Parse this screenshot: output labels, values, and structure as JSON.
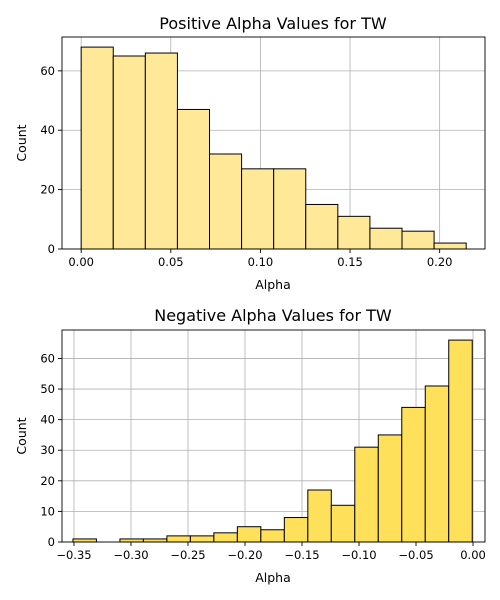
{
  "chart_data": [
    {
      "type": "bar",
      "title": "Positive Alpha Values for TW",
      "xlabel": "Alpha",
      "ylabel": "Count",
      "xlim": [
        -0.0107,
        0.2253
      ],
      "ylim": [
        0,
        71.4
      ],
      "xticks": [
        0.0,
        0.05,
        0.1,
        0.15,
        0.2
      ],
      "xtick_labels": [
        "0.00",
        "0.05",
        "0.10",
        "0.15",
        "0.20"
      ],
      "yticks": [
        0,
        20,
        40,
        60
      ],
      "ytick_labels": [
        "0",
        "20",
        "40",
        "60"
      ],
      "grid": true,
      "bar_color": "#ffe898",
      "bin_edges": [
        0.0,
        0.0179,
        0.0358,
        0.0537,
        0.0716,
        0.0895,
        0.1074,
        0.1253,
        0.1432,
        0.1611,
        0.179,
        0.1969,
        0.2148
      ],
      "counts": [
        68,
        65,
        66,
        47,
        32,
        27,
        27,
        15,
        11,
        7,
        6,
        2
      ]
    },
    {
      "type": "bar",
      "title": "Negative Alpha Values for TW",
      "xlabel": "Alpha",
      "ylabel": "Count",
      "xlim": [
        -0.3605,
        0.0105
      ],
      "ylim": [
        0,
        69.3
      ],
      "xticks": [
        -0.35,
        -0.3,
        -0.25,
        -0.2,
        -0.15,
        -0.1,
        -0.05,
        0.0
      ],
      "xtick_labels": [
        "−0.35",
        "−0.30",
        "−0.25",
        "−0.20",
        "−0.15",
        "−0.10",
        "−0.05",
        "0.00"
      ],
      "yticks": [
        0,
        10,
        20,
        30,
        40,
        50,
        60
      ],
      "ytick_labels": [
        "0",
        "10",
        "20",
        "30",
        "40",
        "50",
        "60"
      ],
      "grid": true,
      "bar_color": "#ffe05a",
      "bin_edges": [
        -0.3509,
        -0.3303,
        -0.3097,
        -0.2891,
        -0.2685,
        -0.2479,
        -0.2273,
        -0.2067,
        -0.1861,
        -0.1655,
        -0.1449,
        -0.1243,
        -0.1037,
        -0.0831,
        -0.0625,
        -0.0419,
        -0.0213,
        -0.0007
      ],
      "counts": [
        1,
        0,
        1,
        1,
        2,
        2,
        3,
        5,
        4,
        8,
        17,
        12,
        31,
        35,
        44,
        51,
        66
      ]
    }
  ]
}
